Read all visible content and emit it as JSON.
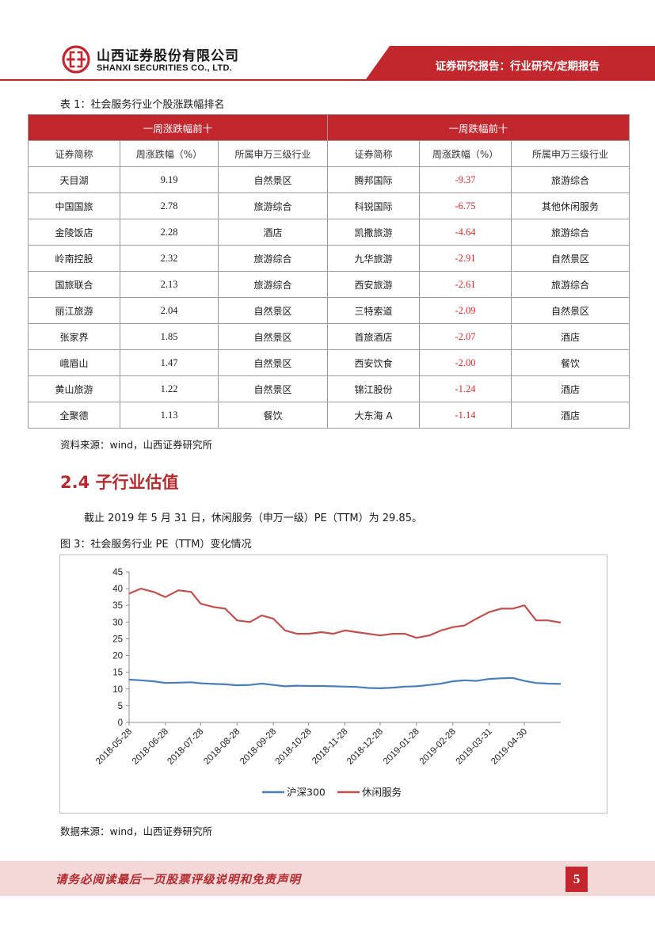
{
  "header": {
    "company_cn": "山西证券股份有限公司",
    "company_en": "SHANXI SECURITIES CO., LTD.",
    "report_tag": "证券研究报告：行业研究/定期报告",
    "brand_color": "#b42a2e"
  },
  "table": {
    "caption": "表 1：社会服务行业个股涨跌幅排名",
    "left_group": "一周涨跌幅前十",
    "right_group": "一周跌幅前十",
    "columns": [
      "证券简称",
      "周涨跌幅（%）",
      "所属申万三级行业",
      "证券简称",
      "周涨跌幅（%）",
      "所属申万三级行业"
    ],
    "rows": [
      [
        "天目湖",
        "9.19",
        "自然景区",
        "腾邦国际",
        "-9.37",
        "旅游综合"
      ],
      [
        "中国国旅",
        "2.78",
        "旅游综合",
        "科锐国际",
        "-6.75",
        "其他休闲服务"
      ],
      [
        "金陵饭店",
        "2.28",
        "酒店",
        "凯撒旅游",
        "-4.64",
        "旅游综合"
      ],
      [
        "岭南控股",
        "2.32",
        "旅游综合",
        "九华旅游",
        "-2.91",
        "自然景区"
      ],
      [
        "国旅联合",
        "2.13",
        "旅游综合",
        "西安旅游",
        "-2.61",
        "旅游综合"
      ],
      [
        "丽江旅游",
        "2.04",
        "自然景区",
        "三特索道",
        "-2.09",
        "自然景区"
      ],
      [
        "张家界",
        "1.85",
        "自然景区",
        "首旅酒店",
        "-2.07",
        "酒店"
      ],
      [
        "峨眉山",
        "1.47",
        "自然景区",
        "西安饮食",
        "-2.00",
        "餐饮"
      ],
      [
        "黄山旅游",
        "1.22",
        "自然景区",
        "锦江股份",
        "-1.24",
        "酒店"
      ],
      [
        "全聚德",
        "1.13",
        "餐饮",
        "大东海 A",
        "-1.14",
        "酒店"
      ]
    ],
    "source": "资料来源：wind，山西证券研究所"
  },
  "section": {
    "title": "2.4 子行业估值",
    "paragraph": "截止 2019 年 5 月 31 日，休闲服务（申万一级）PE（TTM）为 29.85。"
  },
  "figure": {
    "caption": "图 3：社会服务行业 PE（TTM）变化情况",
    "source": "数据来源：wind，山西证券研究所"
  },
  "chart_data": {
    "type": "line",
    "title": "",
    "xlabel": "",
    "ylabel": "",
    "ylim": [
      0,
      45
    ],
    "yticks": [
      "0",
      "5",
      "10",
      "15",
      "20",
      "25",
      "30",
      "35",
      "40",
      "45"
    ],
    "x_ticks": [
      "2018-05-28",
      "2018-06-28",
      "2018-07-28",
      "2018-08-28",
      "2018-09-28",
      "2018-10-28",
      "2018-11-28",
      "2018-12-28",
      "2019-01-28",
      "2019-02-28",
      "2019-03-31",
      "2019-04-30"
    ],
    "x": [
      "2018-05-28",
      "2018-06-07",
      "2018-06-18",
      "2018-06-28",
      "2018-07-09",
      "2018-07-20",
      "2018-07-28",
      "2018-08-08",
      "2018-08-18",
      "2018-08-28",
      "2018-09-08",
      "2018-09-18",
      "2018-09-28",
      "2018-10-08",
      "2018-10-18",
      "2018-10-28",
      "2018-11-08",
      "2018-11-18",
      "2018-11-28",
      "2018-12-08",
      "2018-12-18",
      "2018-12-28",
      "2019-01-08",
      "2019-01-18",
      "2019-01-28",
      "2019-02-08",
      "2019-02-18",
      "2019-02-28",
      "2019-03-10",
      "2019-03-20",
      "2019-03-31",
      "2019-04-10",
      "2019-04-20",
      "2019-04-30",
      "2019-05-10",
      "2019-05-20",
      "2019-05-31"
    ],
    "series": [
      {
        "name": "沪深300",
        "color": "#4a7ebb",
        "values": [
          12.8,
          12.6,
          12.3,
          11.8,
          11.9,
          12.0,
          11.7,
          11.5,
          11.4,
          11.1,
          11.2,
          11.6,
          11.2,
          10.8,
          11.0,
          10.9,
          10.9,
          10.8,
          10.7,
          10.6,
          10.3,
          10.2,
          10.4,
          10.7,
          10.8,
          11.2,
          11.6,
          12.3,
          12.6,
          12.4,
          13.0,
          13.2,
          13.3,
          12.4,
          11.8,
          11.6,
          11.5
        ]
      },
      {
        "name": "休闲服务",
        "color": "#c0504d",
        "values": [
          38.5,
          40.0,
          39.0,
          37.5,
          39.5,
          39.0,
          35.5,
          34.5,
          34.0,
          30.5,
          30.0,
          32.0,
          31.0,
          27.5,
          26.5,
          26.5,
          27.0,
          26.5,
          27.5,
          27.0,
          26.5,
          26.0,
          26.5,
          26.5,
          25.3,
          26.0,
          27.5,
          28.5,
          29.0,
          31.0,
          33.0,
          34.0,
          34.0,
          35.0,
          30.5,
          30.5,
          29.85
        ]
      }
    ],
    "legend": "bottom-center",
    "grid": false
  },
  "footer": {
    "disclaimer": "请务必阅读最后一页股票评级说明和免责声明",
    "page_number": "5"
  }
}
